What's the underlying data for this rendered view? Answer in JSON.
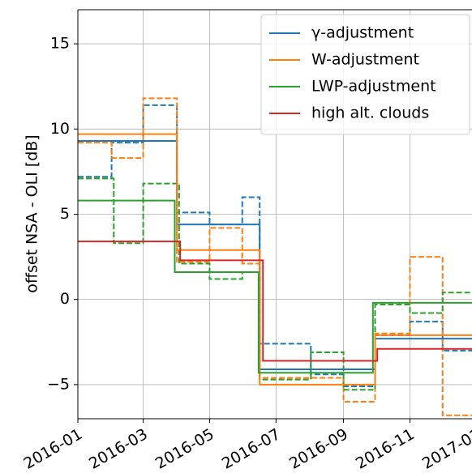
{
  "chart_data": {
    "type": "step",
    "ylabel": "offset NSA - OLI [dB]",
    "xlim": [
      0,
      362
    ],
    "ylim": [
      -7,
      17
    ],
    "xticks": [
      {
        "value": 0,
        "label": "2016-01"
      },
      {
        "value": 60,
        "label": "2016-03"
      },
      {
        "value": 121,
        "label": "2016-05"
      },
      {
        "value": 182,
        "label": "2016-07"
      },
      {
        "value": 244,
        "label": "2016-09"
      },
      {
        "value": 305,
        "label": "2016-11"
      },
      {
        "value": 366,
        "label": "2017-01"
      }
    ],
    "yticks": [
      {
        "value": -5,
        "label": "−5"
      },
      0,
      5,
      10,
      15
    ],
    "grid": true,
    "legend": "upper right",
    "series": [
      {
        "name": "γ-adjustment",
        "color": "#1f77b4",
        "x": [
          0,
          91,
          167,
          273,
          362
        ],
        "values": [
          9.3,
          4.4,
          -4.1,
          -2.3,
          -2.3
        ]
      },
      {
        "name": "W-adjustment",
        "color": "#ff7f0e",
        "x": [
          0,
          91,
          167,
          273,
          362
        ],
        "values": [
          9.7,
          2.9,
          -5.0,
          -2.1,
          -2.1
        ]
      },
      {
        "name": "LWP-adjustment",
        "color": "#2ca02c",
        "x": [
          0,
          89,
          166,
          271,
          362
        ],
        "values": [
          5.8,
          1.6,
          -4.3,
          -0.2,
          -0.2
        ]
      },
      {
        "name": "high alt. clouds",
        "color": "#d62728",
        "x": [
          0,
          94,
          170,
          275,
          362
        ],
        "values": [
          3.4,
          2.3,
          -3.6,
          -2.9,
          -2.9
        ]
      },
      {
        "color": "#1f77b4",
        "dashed": true,
        "x": [
          0,
          31,
          60,
          91,
          121,
          151,
          167,
          214,
          244,
          273,
          305,
          335,
          362
        ],
        "values": [
          7.2,
          9.2,
          11.4,
          5.1,
          4.4,
          6.0,
          -2.6,
          -4.4,
          -5.1,
          -2.1,
          -1.3,
          -3.0,
          -3.0
        ]
      },
      {
        "color": "#ff7f0e",
        "dashed": true,
        "x": [
          0,
          31,
          60,
          91,
          121,
          151,
          167,
          214,
          244,
          273,
          305,
          335,
          362
        ],
        "values": [
          9.2,
          8.3,
          11.8,
          2.2,
          4.2,
          2.1,
          -4.6,
          -4.6,
          -6.0,
          -2.0,
          2.5,
          -6.8,
          -6.8
        ]
      },
      {
        "color": "#2ca02c",
        "dashed": true,
        "x": [
          0,
          33,
          60,
          93,
          121,
          151,
          167,
          214,
          244,
          273,
          305,
          335,
          362
        ],
        "values": [
          7.1,
          3.3,
          6.8,
          2.1,
          1.2,
          1.6,
          -4.7,
          -3.1,
          -5.3,
          -0.3,
          -0.8,
          0.4,
          0.4
        ]
      }
    ]
  }
}
